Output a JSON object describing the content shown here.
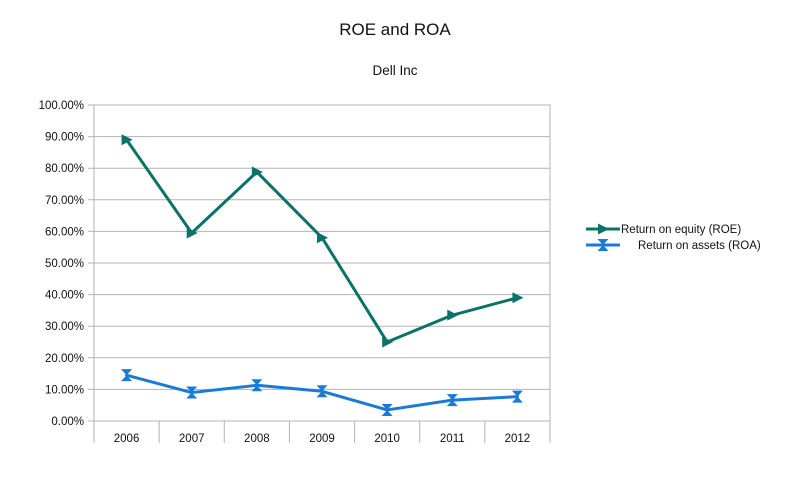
{
  "chart_data": {
    "type": "line",
    "title": "ROE and ROA",
    "subtitle": "Dell Inc",
    "xlabel": "",
    "ylabel": "",
    "categories": [
      "2006",
      "2007",
      "2008",
      "2009",
      "2010",
      "2011",
      "2012"
    ],
    "y_ticks": [
      "0.00%",
      "10.00%",
      "20.00%",
      "30.00%",
      "40.00%",
      "50.00%",
      "60.00%",
      "70.00%",
      "80.00%",
      "90.00%",
      "100.00%"
    ],
    "ylim": [
      0,
      1
    ],
    "grid": true,
    "legend_position": "right",
    "series": [
      {
        "name": "Return on equity (ROE)",
        "values": [
          0.89,
          0.595,
          0.788,
          0.58,
          0.25,
          0.335,
          0.39
        ],
        "color": "#0b7268",
        "marker": "triangle-right"
      },
      {
        "name": "Return on assets (ROA)",
        "values": [
          0.145,
          0.09,
          0.113,
          0.094,
          0.035,
          0.066,
          0.077
        ],
        "color": "#1a7bd6",
        "marker": "hourglass"
      }
    ]
  }
}
